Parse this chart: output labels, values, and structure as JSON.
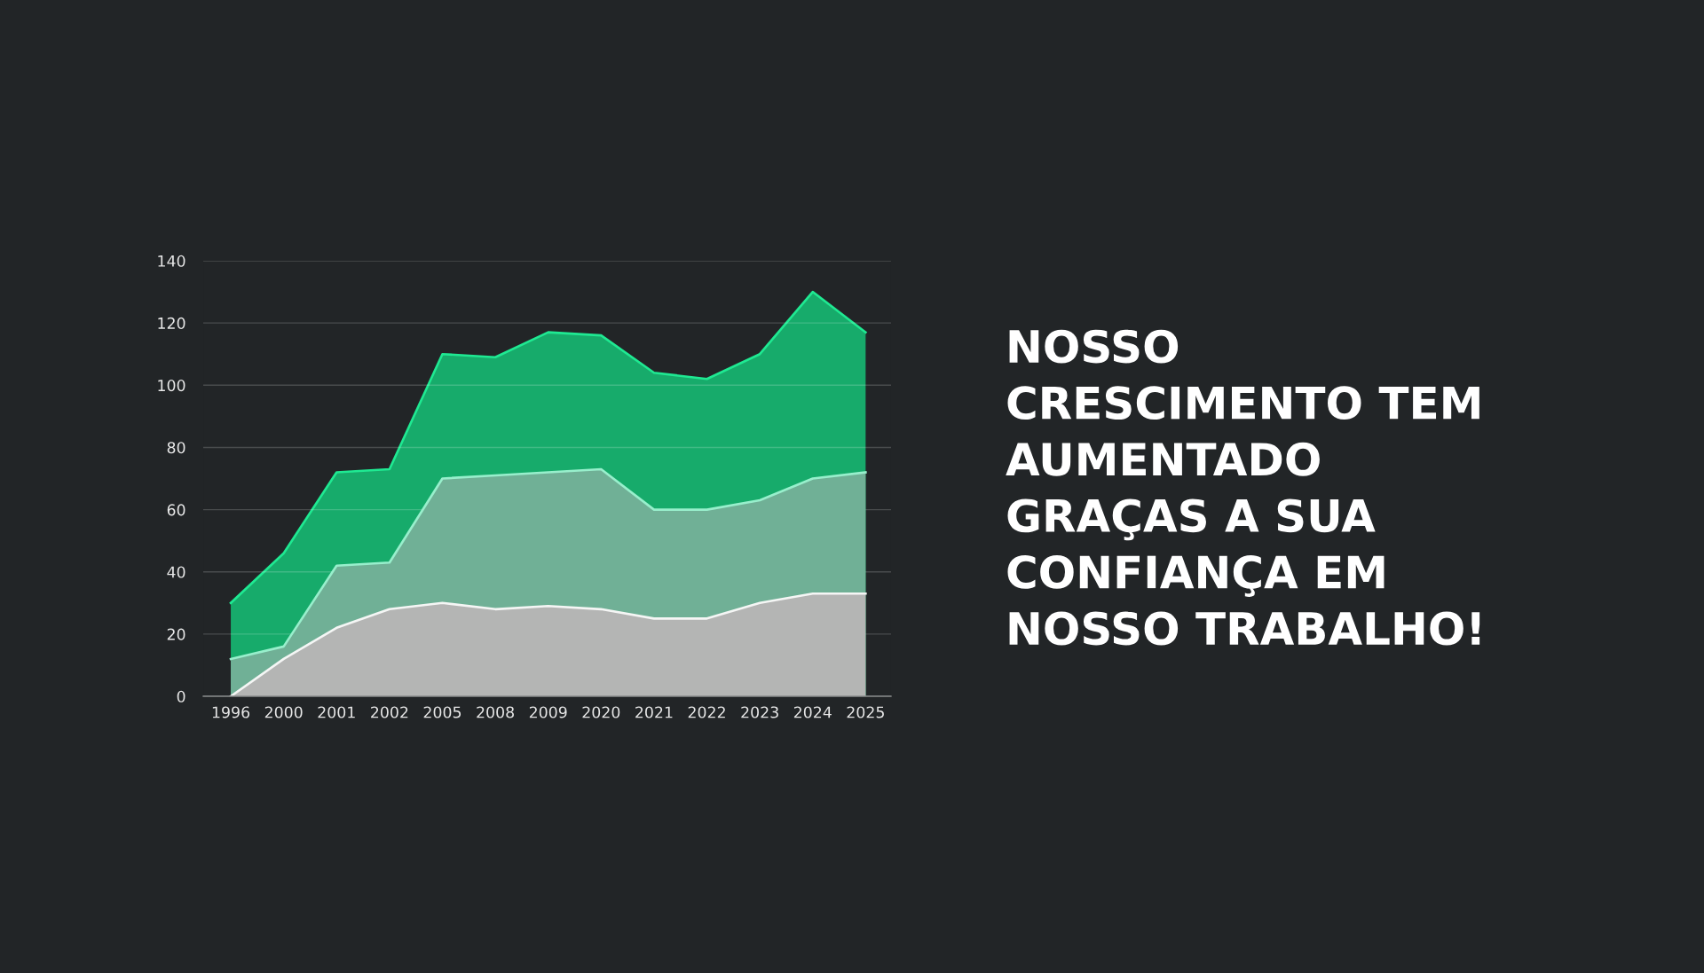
{
  "chart_data": {
    "type": "area",
    "title": "NOSSO\nCRESCIMENTO TEM\nAUMENTADO\nGRAÇAS A SUA\nCONFIANÇA EM\nNOSSO TRABALHO!",
    "categories": [
      "1996",
      "2000",
      "2001",
      "2002",
      "2005",
      "2008",
      "2009",
      "2020",
      "2021",
      "2022",
      "2023",
      "2024",
      "2025"
    ],
    "series": [
      {
        "color": "#17ab6b",
        "values": [
          30,
          46,
          72,
          73,
          110,
          109,
          117,
          116,
          104,
          102,
          110,
          130,
          117
        ]
      },
      {
        "color": "#70b096",
        "values": [
          12,
          16,
          42,
          43,
          70,
          71,
          72,
          73,
          60,
          60,
          63,
          70,
          72
        ]
      },
      {
        "color": "#b4b5b4",
        "values": [
          0,
          12,
          22,
          28,
          30,
          28,
          29,
          28,
          25,
          25,
          30,
          33,
          33
        ]
      }
    ],
    "ylim": [
      0,
      140
    ],
    "yticks": [
      0,
      20,
      40,
      60,
      80,
      100,
      120,
      140
    ],
    "grid": "y",
    "stacked": false
  }
}
